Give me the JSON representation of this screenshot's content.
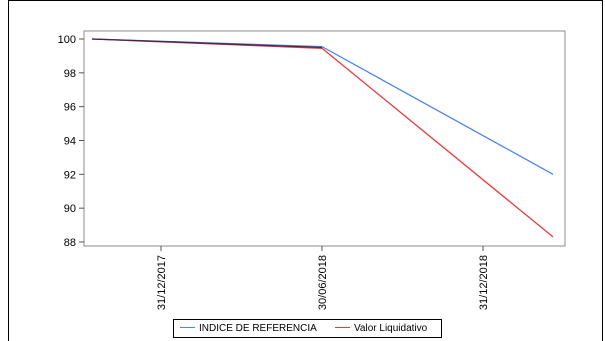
{
  "chart_data": {
    "type": "line",
    "title": "",
    "xlabel": "",
    "ylabel": "",
    "ylim": [
      88,
      100
    ],
    "yticks": [
      88,
      90,
      92,
      94,
      96,
      98,
      100
    ],
    "xticks": [
      "31/12/2017",
      "30/06/2018",
      "31/12/2018"
    ],
    "x": [
      "31/12/2017",
      "30/06/2018",
      "31/12/2018"
    ],
    "series": [
      {
        "name": "INDICE DE REFERENCIA",
        "color": "#4d86ec",
        "values": [
          100.0,
          99.55,
          92.0
        ]
      },
      {
        "name": "Valor Liquidativo",
        "color": "#e83a3a",
        "values": [
          100.0,
          99.45,
          88.3
        ]
      }
    ],
    "grid": false,
    "legend": "bottom"
  }
}
